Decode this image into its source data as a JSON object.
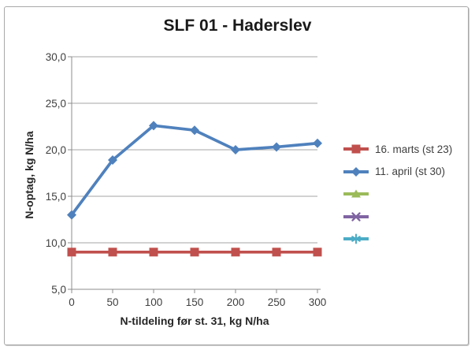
{
  "chart_data": {
    "type": "line",
    "title": "SLF 01 - Haderslev",
    "xlabel": "N-tildeling før st. 31, kg N/ha",
    "ylabel": "N-optag, kg N/ha",
    "x": [
      0,
      50,
      100,
      150,
      200,
      250,
      300
    ],
    "xlim": [
      0,
      300
    ],
    "ylim": [
      5,
      30
    ],
    "xticks": [
      0,
      50,
      100,
      150,
      200,
      250,
      300
    ],
    "xtick_labels": [
      "0",
      "50",
      "100",
      "150",
      "200",
      "250",
      "300"
    ],
    "yticks": [
      5,
      10,
      15,
      20,
      25,
      30
    ],
    "ytick_labels": [
      "5,0",
      "10,0",
      "15,0",
      "20,0",
      "25,0",
      "30,0"
    ],
    "grid": "horizontal-only",
    "legend_position": "right",
    "series": [
      {
        "name": "16. marts (st 23)",
        "color": "#C0504D",
        "marker": "square",
        "values": [
          9.0,
          9.0,
          9.0,
          9.0,
          9.0,
          9.0,
          9.0
        ]
      },
      {
        "name": "11. april (st 30)",
        "color": "#4F81BD",
        "marker": "diamond",
        "values": [
          13.0,
          18.9,
          22.6,
          22.1,
          20.0,
          20.3,
          20.7
        ]
      },
      {
        "name": "",
        "color": "#9BBB59",
        "marker": "triangle",
        "values": []
      },
      {
        "name": "",
        "color": "#8064A2",
        "marker": "x",
        "values": []
      },
      {
        "name": "",
        "color": "#4BACC6",
        "marker": "asterisk",
        "values": []
      }
    ]
  },
  "style": {
    "gridline_color": "#A6A6A6",
    "axis_color": "#8C8C8C",
    "tick_text_color": "#3F3F3F",
    "title_color": "#1A1A1A",
    "frame_border_color": "#A9A9A9",
    "background": "#FFFFFF"
  }
}
